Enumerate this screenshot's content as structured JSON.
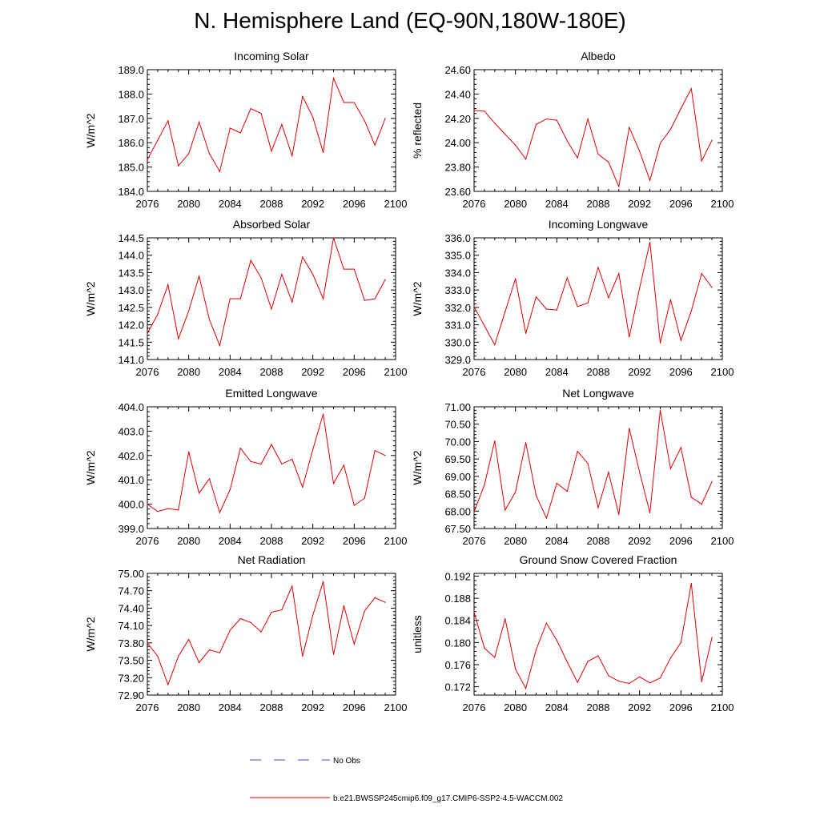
{
  "figure_title": "N. Hemisphere Land (EQ-90N,180W-180E)",
  "legend": {
    "obs_label": "No Obs",
    "model_label": "b.e21.BWSSP245cmip6.f09_g17.CMIP6-SSP2-4.5-WACCM.002"
  },
  "colors": {
    "model_line": "#e00000",
    "obs_line": "#3a4fd0",
    "axis": "#000000"
  },
  "chart_data": [
    {
      "type": "line",
      "title": "Incoming Solar",
      "ylabel": "W/m^2",
      "xlabel": "",
      "xlim": [
        2076,
        2100
      ],
      "ylim": [
        184.0,
        189.0
      ],
      "xticks": [
        2076,
        2080,
        2084,
        2088,
        2092,
        2096,
        2100
      ],
      "xtick_labels": [
        "2076",
        "2080",
        "2084",
        "2088",
        "2092",
        "2096",
        "2100"
      ],
      "yticks": [
        184,
        185,
        186,
        187,
        188,
        189
      ],
      "ytick_labels": [
        "184.0",
        "185.0",
        "186.0",
        "187.0",
        "188.0",
        "189.0"
      ],
      "x": [
        2076,
        2077,
        2078,
        2079,
        2080,
        2081,
        2082,
        2083,
        2084,
        2085,
        2086,
        2087,
        2088,
        2089,
        2090,
        2091,
        2092,
        2093,
        2094,
        2095,
        2096,
        2097,
        2098,
        2099
      ],
      "values": [
        185.3,
        186.1,
        186.9,
        185.05,
        185.55,
        186.85,
        185.55,
        184.82,
        186.6,
        186.4,
        187.4,
        187.2,
        185.65,
        186.75,
        185.45,
        187.9,
        187.05,
        185.6,
        188.65,
        187.65,
        187.65,
        186.9,
        185.9,
        187.0
      ]
    },
    {
      "type": "line",
      "title": "Albedo",
      "ylabel": "% reflected",
      "xlabel": "",
      "xlim": [
        2076,
        2100
      ],
      "ylim": [
        23.6,
        24.6
      ],
      "xticks": [
        2076,
        2080,
        2084,
        2088,
        2092,
        2096,
        2100
      ],
      "xtick_labels": [
        "2076",
        "2080",
        "2084",
        "2088",
        "2092",
        "2096",
        "2100"
      ],
      "yticks": [
        23.6,
        23.8,
        24.0,
        24.2,
        24.4,
        24.6
      ],
      "ytick_labels": [
        "23.60",
        "23.80",
        "24.00",
        "24.20",
        "24.40",
        "24.60"
      ],
      "x": [
        2076,
        2077,
        2078,
        2079,
        2080,
        2081,
        2082,
        2083,
        2084,
        2085,
        2086,
        2087,
        2088,
        2089,
        2090,
        2091,
        2092,
        2093,
        2094,
        2095,
        2096,
        2097,
        2098,
        2099
      ],
      "values": [
        24.265,
        24.26,
        24.16,
        24.07,
        23.98,
        23.865,
        24.15,
        24.195,
        24.185,
        24.015,
        23.875,
        24.195,
        23.905,
        23.84,
        23.64,
        24.125,
        23.93,
        23.69,
        23.995,
        24.11,
        24.28,
        24.445,
        23.85,
        24.02
      ]
    },
    {
      "type": "line",
      "title": "Absorbed Solar",
      "ylabel": "W/m^2",
      "xlabel": "",
      "xlim": [
        2076,
        2100
      ],
      "ylim": [
        141.0,
        144.5
      ],
      "xticks": [
        2076,
        2080,
        2084,
        2088,
        2092,
        2096,
        2100
      ],
      "xtick_labels": [
        "2076",
        "2080",
        "2084",
        "2088",
        "2092",
        "2096",
        "2100"
      ],
      "yticks": [
        141.0,
        141.5,
        142.0,
        142.5,
        143.0,
        143.5,
        144.0,
        144.5
      ],
      "ytick_labels": [
        "141.0",
        "141.5",
        "142.0",
        "142.5",
        "143.0",
        "143.5",
        "144.0",
        "144.5"
      ],
      "x": [
        2076,
        2077,
        2078,
        2079,
        2080,
        2081,
        2082,
        2083,
        2084,
        2085,
        2086,
        2087,
        2088,
        2089,
        2090,
        2091,
        2092,
        2093,
        2094,
        2095,
        2096,
        2097,
        2098,
        2099
      ],
      "values": [
        141.75,
        142.3,
        143.15,
        141.6,
        142.4,
        143.4,
        142.15,
        141.4,
        142.75,
        142.75,
        143.85,
        143.35,
        142.45,
        143.45,
        142.65,
        143.95,
        143.45,
        142.75,
        144.5,
        143.6,
        143.6,
        142.7,
        142.75,
        143.3
      ]
    },
    {
      "type": "line",
      "title": "Incoming Longwave",
      "ylabel": "W/m^2",
      "xlabel": "",
      "xlim": [
        2076,
        2100
      ],
      "ylim": [
        329.0,
        336.0
      ],
      "xticks": [
        2076,
        2080,
        2084,
        2088,
        2092,
        2096,
        2100
      ],
      "xtick_labels": [
        "2076",
        "2080",
        "2084",
        "2088",
        "2092",
        "2096",
        "2100"
      ],
      "yticks": [
        329,
        330,
        331,
        332,
        333,
        334,
        335,
        336
      ],
      "ytick_labels": [
        "329.0",
        "330.0",
        "331.0",
        "332.0",
        "333.0",
        "334.0",
        "335.0",
        "336.0"
      ],
      "x": [
        2076,
        2077,
        2078,
        2079,
        2080,
        2081,
        2082,
        2083,
        2084,
        2085,
        2086,
        2087,
        2088,
        2089,
        2090,
        2091,
        2092,
        2093,
        2094,
        2095,
        2096,
        2097,
        2098,
        2099
      ],
      "values": [
        332.05,
        330.95,
        329.85,
        331.75,
        333.65,
        330.5,
        332.6,
        331.9,
        331.85,
        333.7,
        332.05,
        332.25,
        334.3,
        332.55,
        333.95,
        330.3,
        333.1,
        335.75,
        329.95,
        332.45,
        330.1,
        331.8,
        333.95,
        333.15
      ]
    },
    {
      "type": "line",
      "title": "Emitted Longwave",
      "ylabel": "W/m^2",
      "xlabel": "",
      "xlim": [
        2076,
        2100
      ],
      "ylim": [
        399.0,
        404.0
      ],
      "xticks": [
        2076,
        2080,
        2084,
        2088,
        2092,
        2096,
        2100
      ],
      "xtick_labels": [
        "2076",
        "2080",
        "2084",
        "2088",
        "2092",
        "2096",
        "2100"
      ],
      "yticks": [
        399,
        400,
        401,
        402,
        403,
        404
      ],
      "ytick_labels": [
        "399.0",
        "400.0",
        "401.0",
        "402.0",
        "403.0",
        "404.0"
      ],
      "x": [
        2076,
        2077,
        2078,
        2079,
        2080,
        2081,
        2082,
        2083,
        2084,
        2085,
        2086,
        2087,
        2088,
        2089,
        2090,
        2091,
        2092,
        2093,
        2094,
        2095,
        2096,
        2097,
        2098,
        2099
      ],
      "values": [
        400.0,
        399.7,
        399.82,
        399.76,
        402.15,
        400.45,
        401.05,
        399.65,
        400.6,
        402.3,
        401.75,
        401.65,
        402.45,
        401.65,
        401.85,
        400.7,
        402.25,
        403.7,
        400.85,
        401.6,
        399.95,
        400.25,
        402.2,
        402.0
      ]
    },
    {
      "type": "line",
      "title": "Net Longwave",
      "ylabel": "W/m^2",
      "xlabel": "",
      "xlim": [
        2076,
        2100
      ],
      "ylim": [
        67.5,
        71.0
      ],
      "xticks": [
        2076,
        2080,
        2084,
        2088,
        2092,
        2096,
        2100
      ],
      "xtick_labels": [
        "2076",
        "2080",
        "2084",
        "2088",
        "2092",
        "2096",
        "2100"
      ],
      "yticks": [
        67.5,
        68.0,
        68.5,
        69.0,
        69.5,
        70.0,
        70.5,
        71.0
      ],
      "ytick_labels": [
        "67.50",
        "68.00",
        "68.50",
        "69.00",
        "69.50",
        "70.00",
        "70.50",
        "71.00"
      ],
      "x": [
        2076,
        2077,
        2078,
        2079,
        2080,
        2081,
        2082,
        2083,
        2084,
        2085,
        2086,
        2087,
        2088,
        2089,
        2090,
        2091,
        2092,
        2093,
        2094,
        2095,
        2096,
        2097,
        2098,
        2099
      ],
      "values": [
        67.98,
        68.75,
        70.02,
        68.03,
        68.55,
        69.97,
        68.45,
        67.8,
        68.8,
        68.57,
        69.72,
        69.37,
        68.1,
        69.12,
        67.9,
        70.38,
        69.12,
        67.95,
        70.9,
        69.22,
        69.83,
        68.4,
        68.2,
        68.85
      ]
    },
    {
      "type": "line",
      "title": "Net Radiation",
      "ylabel": "W/m^2",
      "xlabel": "",
      "xlim": [
        2076,
        2100
      ],
      "ylim": [
        72.9,
        75.0
      ],
      "xticks": [
        2076,
        2080,
        2084,
        2088,
        2092,
        2096,
        2100
      ],
      "xtick_labels": [
        "2076",
        "2080",
        "2084",
        "2088",
        "2092",
        "2096",
        "2100"
      ],
      "yticks": [
        72.9,
        73.2,
        73.5,
        73.8,
        74.1,
        74.4,
        74.7,
        75.0
      ],
      "ytick_labels": [
        "72.90",
        "73.20",
        "73.50",
        "73.80",
        "74.10",
        "74.40",
        "74.70",
        "75.00"
      ],
      "x": [
        2076,
        2077,
        2078,
        2079,
        2080,
        2081,
        2082,
        2083,
        2084,
        2085,
        2086,
        2087,
        2088,
        2089,
        2090,
        2091,
        2092,
        2093,
        2094,
        2095,
        2096,
        2097,
        2098,
        2099
      ],
      "values": [
        73.8,
        73.57,
        73.08,
        73.57,
        73.86,
        73.46,
        73.68,
        73.63,
        74.02,
        74.22,
        74.15,
        73.99,
        74.33,
        74.37,
        74.78,
        73.57,
        74.28,
        74.86,
        73.6,
        74.44,
        73.78,
        74.35,
        74.58,
        74.5
      ]
    },
    {
      "type": "line",
      "title": "Ground Snow Covered Fraction",
      "ylabel": "unitless",
      "xlabel": "",
      "xlim": [
        2076,
        2100
      ],
      "ylim": [
        0.1705,
        0.1925
      ],
      "xticks": [
        2076,
        2080,
        2084,
        2088,
        2092,
        2096,
        2100
      ],
      "xtick_labels": [
        "2076",
        "2080",
        "2084",
        "2088",
        "2092",
        "2096",
        "2100"
      ],
      "yticks": [
        0.172,
        0.176,
        0.18,
        0.184,
        0.188,
        0.192
      ],
      "ytick_labels": [
        "0.172",
        "0.176",
        "0.180",
        "0.184",
        "0.188",
        "0.192"
      ],
      "x": [
        2076,
        2077,
        2078,
        2079,
        2080,
        2081,
        2082,
        2083,
        2084,
        2085,
        2086,
        2087,
        2088,
        2089,
        2090,
        2091,
        2092,
        2093,
        2094,
        2095,
        2096,
        2097,
        2098,
        2099
      ],
      "values": [
        0.1855,
        0.179,
        0.1773,
        0.1843,
        0.1752,
        0.1717,
        0.1787,
        0.1835,
        0.1804,
        0.1765,
        0.1728,
        0.1766,
        0.1776,
        0.174,
        0.173,
        0.1726,
        0.1738,
        0.1727,
        0.1736,
        0.1772,
        0.18,
        0.1907,
        0.1729,
        0.1809
      ]
    }
  ]
}
